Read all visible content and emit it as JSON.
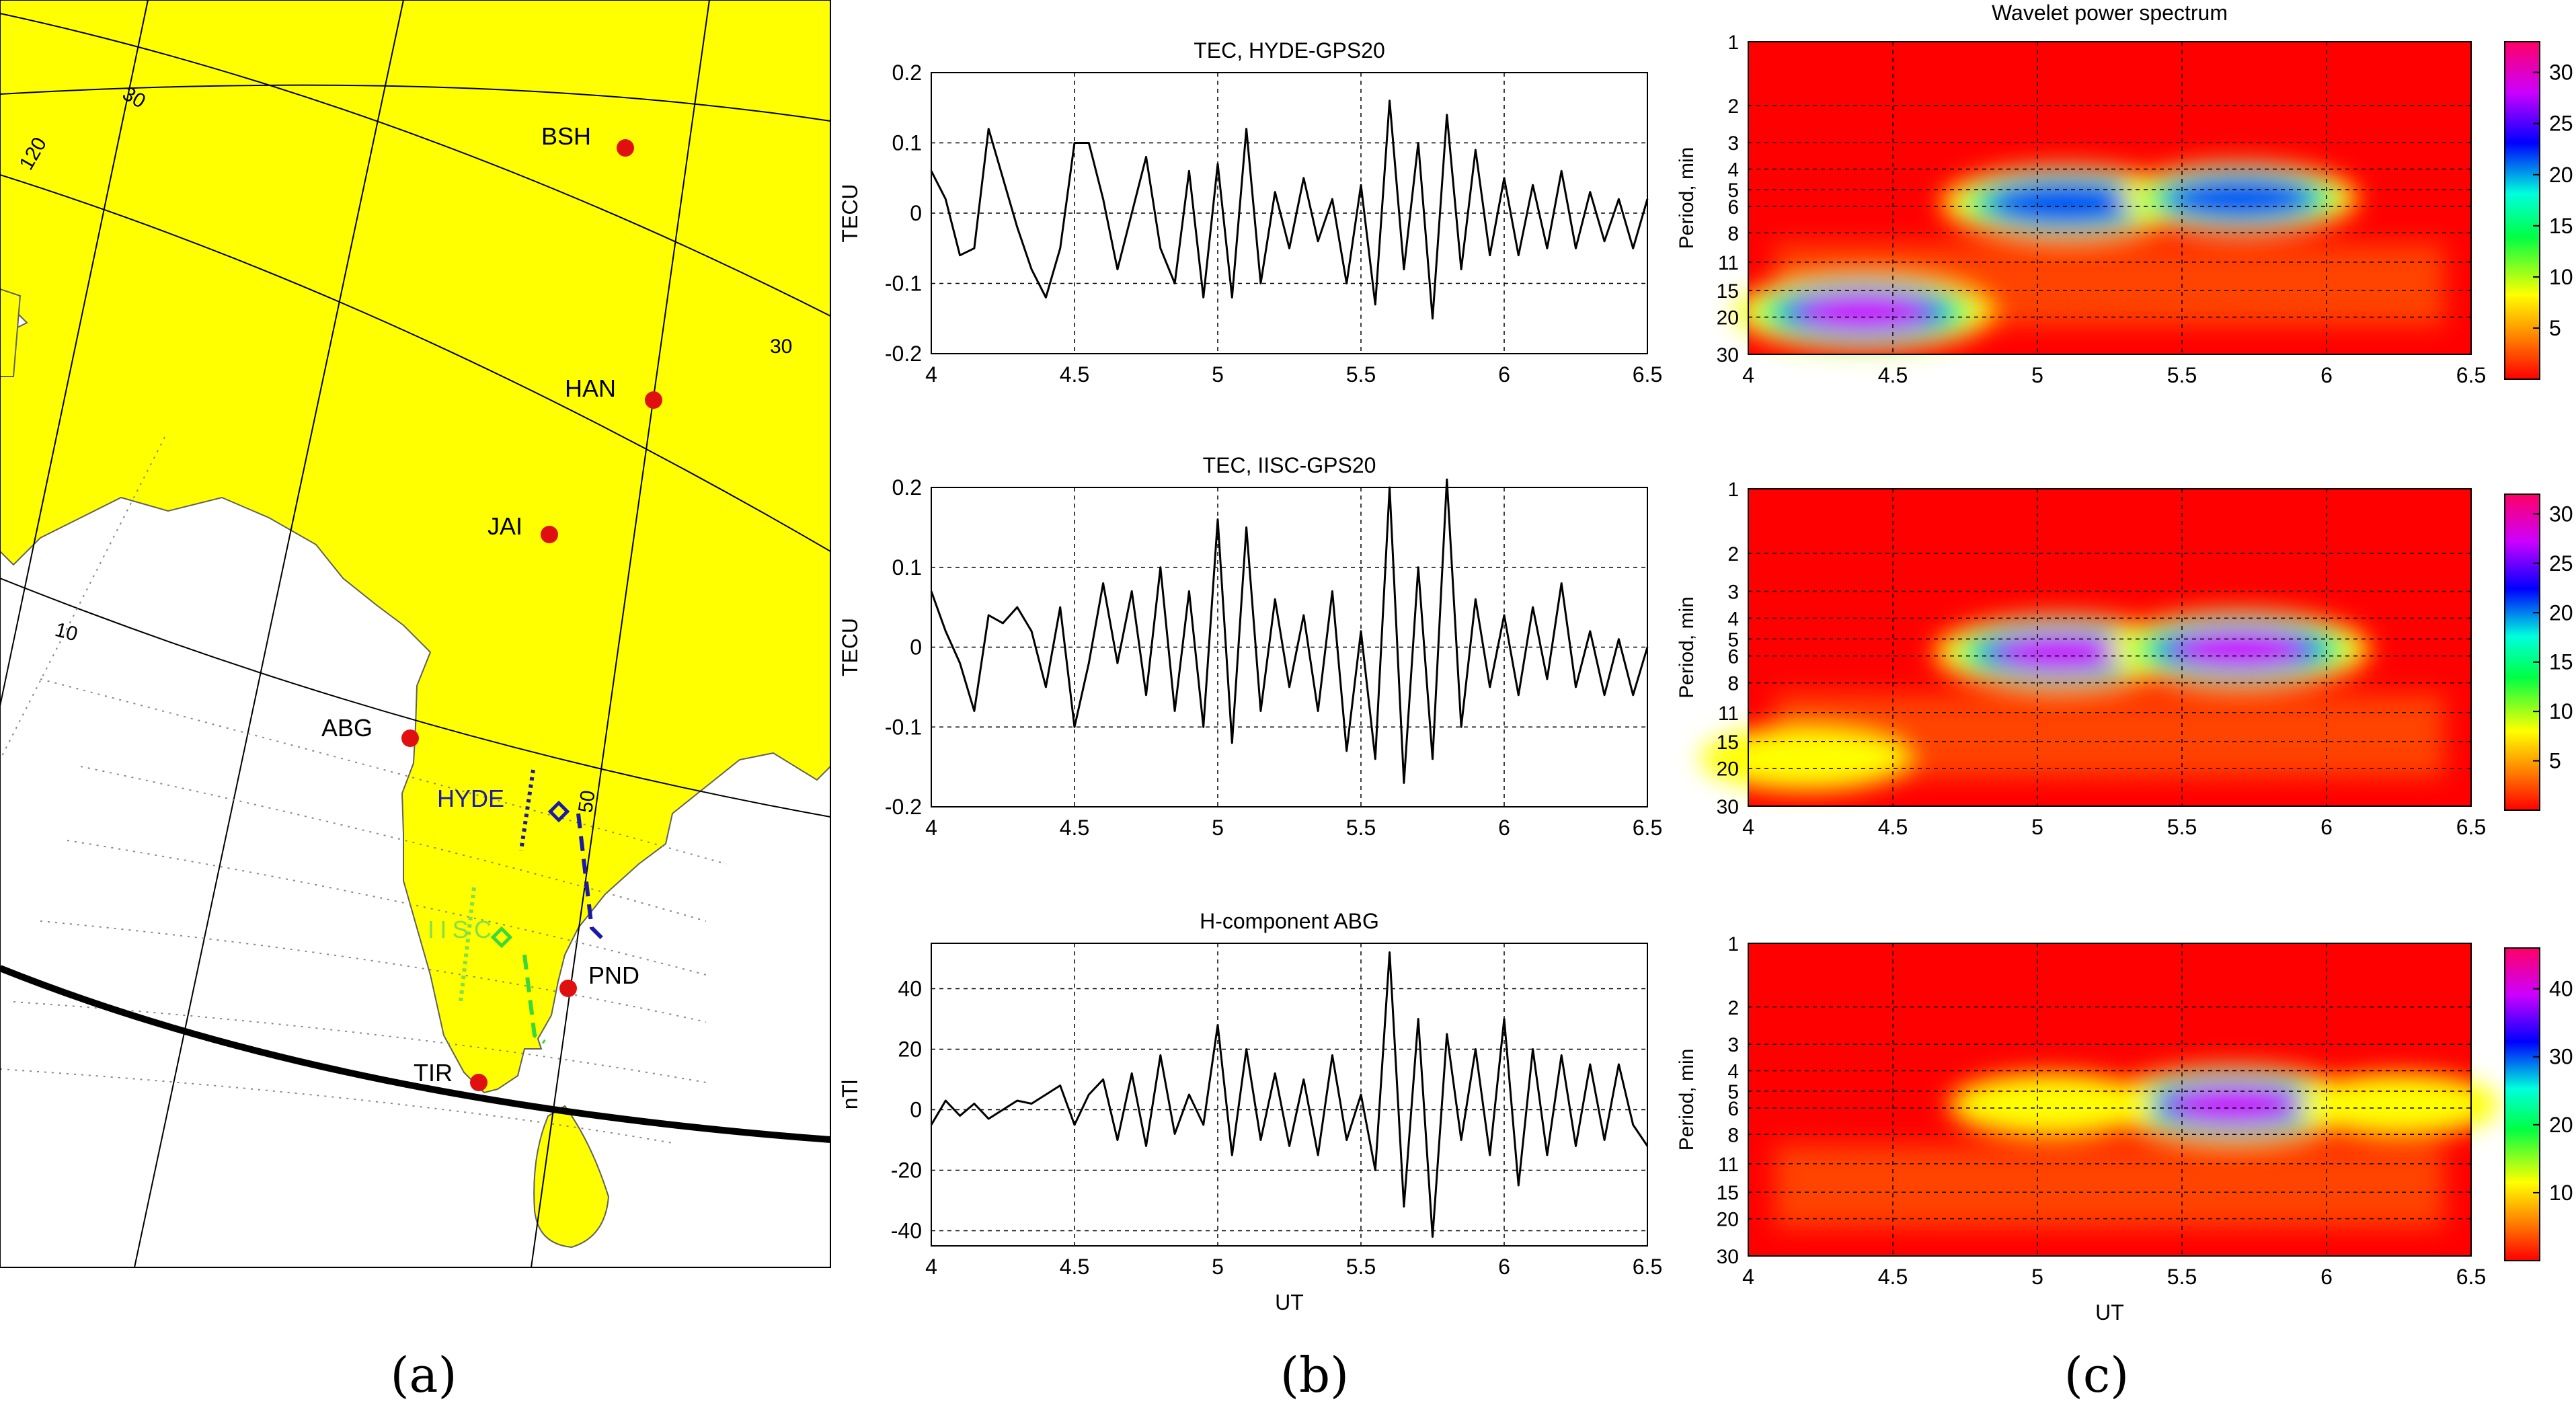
{
  "figure": {
    "captions": [
      "(a)",
      "(b)",
      "(c)"
    ]
  },
  "map": {
    "stations": [
      {
        "name": "BSH"
      },
      {
        "name": "HAN"
      },
      {
        "name": "JAI"
      },
      {
        "name": "ABG"
      },
      {
        "name": "PND"
      },
      {
        "name": "TIR"
      }
    ],
    "grid_labels": [
      "120",
      "30",
      "30",
      "10",
      "50"
    ],
    "receivers": [
      {
        "name": "HYDE",
        "color": "#1a1aa6"
      },
      {
        "name": "IISC",
        "color": "#7fe04a"
      }
    ],
    "colors": {
      "land": "#ffff00",
      "sea": "#ffffff",
      "station": "#e01010",
      "terminator": "#000000"
    }
  },
  "chart_data": [
    {
      "type": "line",
      "title": "TEC,   HYDE-GPS20",
      "xlabel": "",
      "ylabel": "TECU",
      "xlim": [
        4,
        6.5
      ],
      "ylim": [
        -0.2,
        0.2
      ],
      "xticks": [
        "4",
        "4.5",
        "5",
        "5.5",
        "6",
        "6.5"
      ],
      "yticks": [
        "0.2",
        "0.1",
        "0",
        "-0.1",
        "-0.2"
      ],
      "grid": true,
      "series": [
        {
          "x": [
            4.0,
            4.05,
            4.1,
            4.15,
            4.2,
            4.25,
            4.3,
            4.35,
            4.4,
            4.45,
            4.5,
            4.55,
            4.6,
            4.65,
            4.7,
            4.75,
            4.8,
            4.85,
            4.9,
            4.95,
            5.0,
            5.05,
            5.1,
            5.15,
            5.2,
            5.25,
            5.3,
            5.35,
            5.4,
            5.45,
            5.5,
            5.55,
            5.6,
            5.65,
            5.7,
            5.75,
            5.8,
            5.85,
            5.9,
            5.95,
            6.0,
            6.05,
            6.1,
            6.15,
            6.2,
            6.25,
            6.3,
            6.35,
            6.4,
            6.45,
            6.5
          ],
          "y": [
            0.06,
            0.02,
            -0.06,
            -0.05,
            0.12,
            0.05,
            -0.02,
            -0.08,
            -0.12,
            -0.05,
            0.1,
            0.1,
            0.02,
            -0.08,
            0.0,
            0.08,
            -0.05,
            -0.1,
            0.06,
            -0.12,
            0.07,
            -0.12,
            0.12,
            -0.1,
            0.03,
            -0.05,
            0.05,
            -0.04,
            0.02,
            -0.1,
            0.04,
            -0.13,
            0.16,
            -0.08,
            0.1,
            -0.15,
            0.14,
            -0.08,
            0.09,
            -0.06,
            0.05,
            -0.06,
            0.04,
            -0.05,
            0.06,
            -0.05,
            0.03,
            -0.04,
            0.02,
            -0.05,
            0.02
          ]
        }
      ]
    },
    {
      "type": "line",
      "title": "TEC,   IISC-GPS20",
      "xlabel": "",
      "ylabel": "TECU",
      "xlim": [
        4,
        6.5
      ],
      "ylim": [
        -0.2,
        0.2
      ],
      "xticks": [
        "4",
        "4.5",
        "5",
        "5.5",
        "6",
        "6.5"
      ],
      "yticks": [
        "0.2",
        "0.1",
        "0",
        "-0.1",
        "-0.2"
      ],
      "grid": true,
      "series": [
        {
          "x": [
            4.0,
            4.05,
            4.1,
            4.15,
            4.2,
            4.25,
            4.3,
            4.35,
            4.4,
            4.45,
            4.5,
            4.55,
            4.6,
            4.65,
            4.7,
            4.75,
            4.8,
            4.85,
            4.9,
            4.95,
            5.0,
            5.05,
            5.1,
            5.15,
            5.2,
            5.25,
            5.3,
            5.35,
            5.4,
            5.45,
            5.5,
            5.55,
            5.6,
            5.65,
            5.7,
            5.75,
            5.8,
            5.85,
            5.9,
            5.95,
            6.0,
            6.05,
            6.1,
            6.15,
            6.2,
            6.25,
            6.3,
            6.35,
            6.4,
            6.45,
            6.5
          ],
          "y": [
            0.07,
            0.02,
            -0.02,
            -0.08,
            0.04,
            0.03,
            0.05,
            0.02,
            -0.05,
            0.05,
            -0.1,
            -0.02,
            0.08,
            -0.02,
            0.07,
            -0.06,
            0.1,
            -0.08,
            0.07,
            -0.1,
            0.16,
            -0.12,
            0.15,
            -0.08,
            0.06,
            -0.05,
            0.04,
            -0.08,
            0.07,
            -0.13,
            0.02,
            -0.14,
            0.2,
            -0.17,
            0.1,
            -0.14,
            0.21,
            -0.1,
            0.06,
            -0.05,
            0.04,
            -0.06,
            0.05,
            -0.04,
            0.08,
            -0.05,
            0.02,
            -0.06,
            0.01,
            -0.06,
            0.0
          ]
        }
      ]
    },
    {
      "type": "line",
      "title": "H-component ABG",
      "xlabel": "UT",
      "ylabel": "nTl",
      "xlim": [
        4,
        6.5
      ],
      "ylim": [
        -45,
        55
      ],
      "xticks": [
        "4",
        "4.5",
        "5",
        "5.5",
        "6",
        "6.5"
      ],
      "yticks": [
        "40",
        "20",
        "0",
        "-20",
        "-40"
      ],
      "grid": true,
      "series": [
        {
          "x": [
            4.0,
            4.05,
            4.1,
            4.15,
            4.2,
            4.25,
            4.3,
            4.35,
            4.4,
            4.45,
            4.5,
            4.55,
            4.6,
            4.65,
            4.7,
            4.75,
            4.8,
            4.85,
            4.9,
            4.95,
            5.0,
            5.05,
            5.1,
            5.15,
            5.2,
            5.25,
            5.3,
            5.35,
            5.4,
            5.45,
            5.5,
            5.55,
            5.6,
            5.65,
            5.7,
            5.75,
            5.8,
            5.85,
            5.9,
            5.95,
            6.0,
            6.05,
            6.1,
            6.15,
            6.2,
            6.25,
            6.3,
            6.35,
            6.4,
            6.45,
            6.5
          ],
          "y": [
            -5,
            3,
            -2,
            2,
            -3,
            0,
            3,
            2,
            5,
            8,
            -5,
            5,
            10,
            -10,
            12,
            -12,
            18,
            -8,
            5,
            -5,
            28,
            -15,
            20,
            -10,
            12,
            -12,
            10,
            -15,
            18,
            -10,
            5,
            -20,
            52,
            -32,
            30,
            -42,
            25,
            -10,
            20,
            -15,
            30,
            -25,
            20,
            -15,
            18,
            -12,
            15,
            -10,
            15,
            -5,
            -12
          ]
        }
      ]
    },
    {
      "type": "heatmap",
      "title": "Wavelet power spectrum",
      "xlabel": "",
      "ylabel": "Period, min",
      "xlim": [
        4,
        6.5
      ],
      "xticks": [
        "4",
        "4.5",
        "5",
        "5.5",
        "6",
        "6.5"
      ],
      "yticks": [
        "1",
        "2",
        "3",
        "4",
        "5",
        "6",
        "8",
        "11",
        "15",
        "20",
        "30"
      ],
      "colorbar": {
        "max": 33,
        "ticks": [
          "30",
          "25",
          "20",
          "15",
          "10",
          "5"
        ]
      },
      "blobs": [
        {
          "x": 4.4,
          "period": 19,
          "power": 32
        },
        {
          "x": 5.1,
          "period": 5.8,
          "power": 28
        },
        {
          "x": 5.7,
          "period": 5.5,
          "power": 22
        }
      ]
    },
    {
      "type": "heatmap",
      "title": "",
      "xlabel": "",
      "ylabel": "Period, min",
      "xlim": [
        4,
        6.5
      ],
      "xticks": [
        "4",
        "4.5",
        "5",
        "5.5",
        "6",
        "6.5"
      ],
      "yticks": [
        "1",
        "2",
        "3",
        "4",
        "5",
        "6",
        "8",
        "11",
        "15",
        "20",
        "30"
      ],
      "colorbar": {
        "max": 32,
        "ticks": [
          "30",
          "25",
          "20",
          "15",
          "10",
          "5"
        ]
      },
      "blobs": [
        {
          "x": 5.08,
          "period": 5.8,
          "power": 28
        },
        {
          "x": 5.7,
          "period": 5.6,
          "power": 31
        },
        {
          "x": 4.2,
          "period": 18,
          "power": 12
        }
      ]
    },
    {
      "type": "heatmap",
      "title": "",
      "xlabel": "UT",
      "ylabel": "Period, min",
      "xlim": [
        4,
        6.5
      ],
      "xticks": [
        "4",
        "4.5",
        "5",
        "5.5",
        "6",
        "6.5"
      ],
      "yticks": [
        "1",
        "2",
        "3",
        "4",
        "5",
        "6",
        "8",
        "11",
        "15",
        "20",
        "30"
      ],
      "colorbar": {
        "max": 46,
        "ticks": [
          "40",
          "30",
          "20",
          "10"
        ]
      },
      "blobs": [
        {
          "x": 5.68,
          "period": 5.8,
          "power": 45
        },
        {
          "x": 5.05,
          "period": 5.8,
          "power": 14
        },
        {
          "x": 6.25,
          "period": 5.8,
          "power": 12
        }
      ]
    }
  ]
}
